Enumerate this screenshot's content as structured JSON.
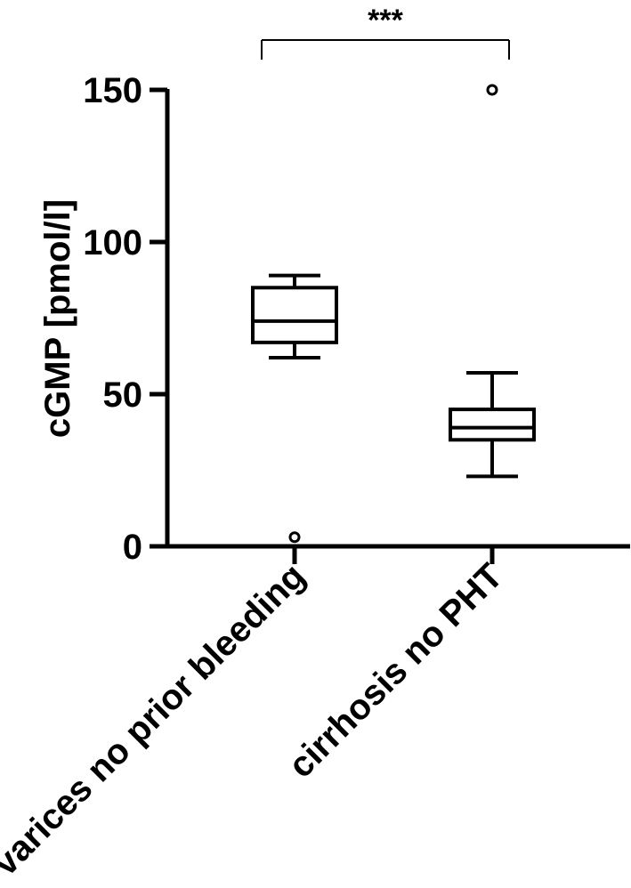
{
  "chart_data": {
    "type": "box",
    "title": "",
    "ylabel": "cGMP [pmol/l]",
    "xlabel": "",
    "ylim": [
      0,
      150
    ],
    "yticks": [
      0,
      50,
      100,
      150
    ],
    "grid": false,
    "categories": [
      "varices no prior bleeding",
      "cirrhosis no PHT"
    ],
    "boxes": [
      {
        "category": "varices no prior bleeding",
        "whisker_low": 62,
        "q1": 67,
        "median": 74,
        "q3": 85,
        "whisker_high": 89,
        "outliers": [
          3
        ]
      },
      {
        "category": "cirrhosis no PHT",
        "whisker_low": 23,
        "q1": 35,
        "median": 39,
        "q3": 45,
        "whisker_high": 57,
        "outliers": [
          150
        ]
      }
    ],
    "significance": {
      "groups": [
        0,
        1
      ],
      "label": "***"
    }
  }
}
